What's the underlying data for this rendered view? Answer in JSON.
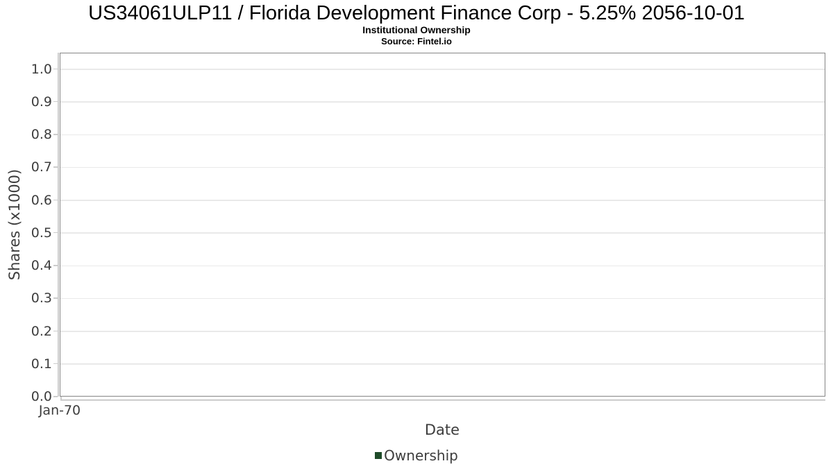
{
  "header": {
    "title": "US34061ULP11 / Florida Development Finance Corp - 5.25% 2056-10-01",
    "subtitle": "Institutional Ownership",
    "source": "Source: Fintel.io"
  },
  "chart_data": {
    "type": "line",
    "title": "US34061ULP11 / Florida Development Finance Corp - 5.25% 2056-10-01",
    "subtitle": "Institutional Ownership",
    "source": "Source: Fintel.io",
    "xlabel": "Date",
    "ylabel": "Shares (x1000)",
    "x_ticks": [
      "Jan-70"
    ],
    "y_ticks": [
      "0.0",
      "0.1",
      "0.2",
      "0.3",
      "0.4",
      "0.5",
      "0.6",
      "0.7",
      "0.8",
      "0.9",
      "1.0"
    ],
    "ylim": [
      0,
      1.05
    ],
    "grid": "horizontal-only",
    "legend_position": "bottom",
    "series": [
      {
        "name": "Ownership",
        "color": "#1e4b29",
        "x": [],
        "values": []
      }
    ]
  },
  "legend": {
    "items": [
      {
        "label": "Ownership",
        "color": "#1e4b29"
      }
    ]
  },
  "colors": {
    "plot_border": "#858585",
    "grid_line": "#e9e9e9",
    "axis_line": "#cccccc",
    "title_text": "#000000",
    "axis_text": "#3d3d3d"
  }
}
